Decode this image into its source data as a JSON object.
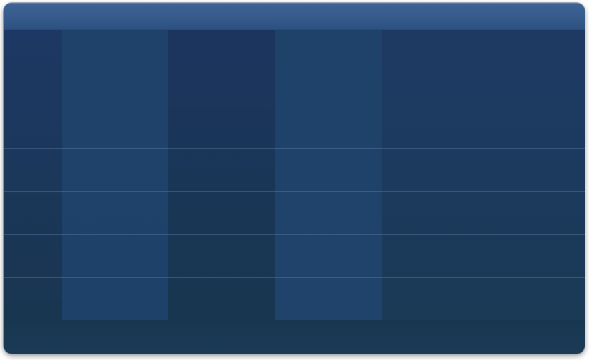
{
  "table": {
    "header_labels": [
      "",
      "",
      "",
      "",
      ""
    ],
    "rows": [
      [
        "",
        "",
        "",
        "",
        ""
      ],
      [
        "",
        "",
        "",
        "",
        ""
      ],
      [
        "",
        "",
        "",
        "",
        ""
      ],
      [
        "",
        "",
        "",
        "",
        ""
      ],
      [
        "",
        "",
        "",
        "",
        ""
      ],
      [
        "",
        "",
        "",
        "",
        ""
      ],
      [
        "",
        "",
        "",
        "",
        ""
      ]
    ],
    "footer_text": ""
  },
  "colors": {
    "header": "#355a8b",
    "body_dark": "#1b3558",
    "body_light": "#1f426a",
    "footer": "#1b3a57",
    "row_divider": "#587aa5"
  }
}
